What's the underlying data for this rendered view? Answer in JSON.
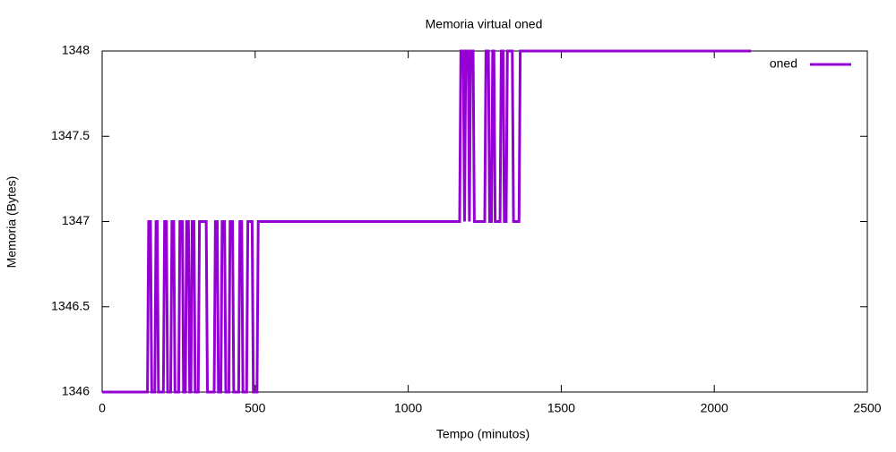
{
  "chart_data": {
    "type": "line",
    "title": "Memoria virtual oned",
    "xlabel": "Tempo (minutos)",
    "ylabel": "Memoria (Bytes)",
    "x": [
      0,
      148,
      152,
      158,
      162,
      172,
      176,
      180,
      184,
      200,
      204,
      210,
      214,
      224,
      228,
      234,
      238,
      250,
      254,
      262,
      266,
      272,
      276,
      282,
      286,
      290,
      294,
      300,
      304,
      314,
      318,
      340,
      344,
      366,
      370,
      376,
      380,
      388,
      392,
      400,
      404,
      414,
      418,
      426,
      430,
      446,
      450,
      456,
      460,
      472,
      476,
      490,
      494,
      506,
      510,
      1168,
      1172,
      1180,
      1184,
      1188,
      1196,
      1200,
      1204,
      1212,
      1216,
      1250,
      1254,
      1262,
      1266,
      1272,
      1276,
      1280,
      1284,
      1300,
      1304,
      1310,
      1314,
      1320,
      1324,
      1340,
      1344,
      1362,
      1366,
      2120
    ],
    "series": [
      {
        "name": "oned",
        "color": "#9400d3",
        "values": [
          1346,
          1346,
          1347,
          1347,
          1346,
          1346,
          1347,
          1347,
          1346,
          1346,
          1347,
          1347,
          1346,
          1346,
          1347,
          1347,
          1346,
          1346,
          1347,
          1347,
          1346,
          1346,
          1347,
          1347,
          1346,
          1346,
          1347,
          1347,
          1346,
          1346,
          1347,
          1347,
          1346,
          1346,
          1347,
          1347,
          1346,
          1346,
          1347,
          1347,
          1346,
          1346,
          1347,
          1347,
          1346,
          1346,
          1347,
          1347,
          1346,
          1346,
          1347,
          1347,
          1346,
          1346,
          1347,
          1347,
          1348,
          1348,
          1347,
          1348,
          1348,
          1347,
          1348,
          1348,
          1347,
          1347,
          1348,
          1348,
          1347,
          1347,
          1348,
          1348,
          1347,
          1347,
          1348,
          1348,
          1347,
          1347,
          1348,
          1348,
          1347,
          1347,
          1348,
          1348
        ]
      }
    ],
    "xlim": [
      0,
      2500
    ],
    "xticks": [
      0,
      500,
      1000,
      1500,
      2000,
      2500
    ],
    "ylim": [
      1346,
      1348
    ],
    "yticks": [
      1346,
      1346.5,
      1347,
      1347.5,
      1348
    ],
    "legend": "top-right"
  }
}
